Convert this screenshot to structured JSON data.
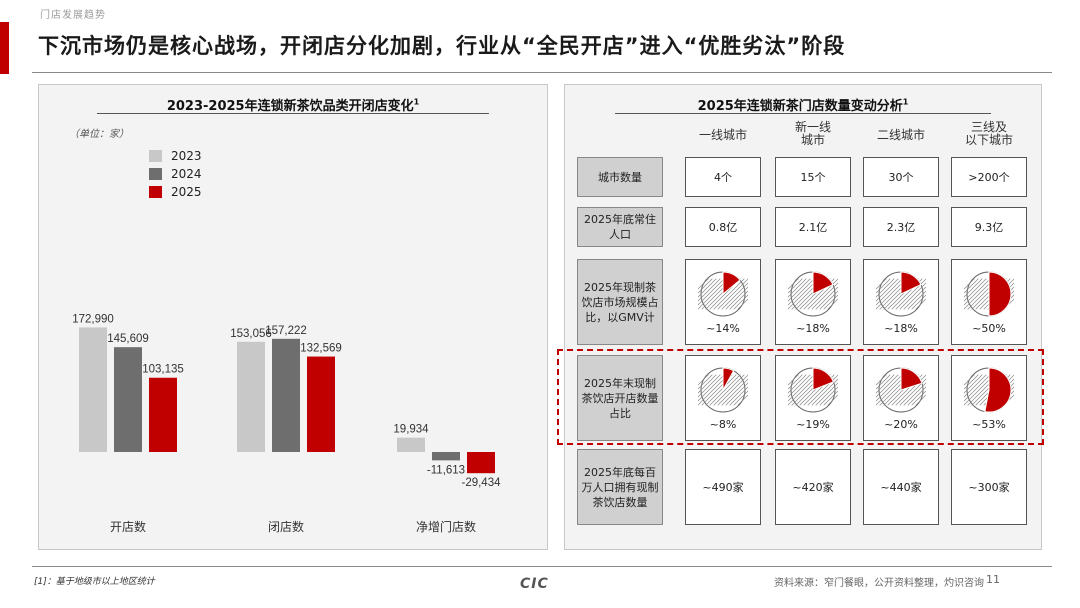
{
  "header": {
    "breadcrumb": "门店发展趋势",
    "title": "下沉市场仍是核心战场，开闭店分化加剧，行业从“全民开店”进入“优胜劣汰”阶段"
  },
  "left_panel": {
    "title": "2023-2025年连锁新茶饮品类开闭店变化",
    "title_sup": "1",
    "unit": "（单位：家）"
  },
  "chart_data": {
    "type": "bar",
    "categories": [
      "开店数",
      "闭店数",
      "净增门店数"
    ],
    "series": [
      {
        "name": "2023",
        "values": [
          172990,
          153056,
          19934
        ],
        "color": "#c8c8c8"
      },
      {
        "name": "2024",
        "values": [
          145609,
          157222,
          -11613
        ],
        "color": "#6e6e6e"
      },
      {
        "name": "2025",
        "values": [
          103135,
          132569,
          -29434
        ],
        "color": "#c00000"
      }
    ],
    "data_labels": [
      [
        "172,990",
        "145,609",
        "103,135"
      ],
      [
        "153,056",
        "157,222",
        "132,569"
      ],
      [
        "19,934",
        "-11,613",
        "-29,434"
      ]
    ],
    "legend_position": "top-left",
    "grid": false
  },
  "right_panel": {
    "title": "2025年连锁新茶门店数量变动分析",
    "title_sup": "1",
    "columns": [
      "一线城市",
      "新一线城市",
      "二线城市",
      "三线及以下城市"
    ],
    "rows": [
      {
        "label": "城市数量",
        "values": [
          "4个",
          "15个",
          "30个",
          ">200个"
        ]
      },
      {
        "label": "2025年底常住人口",
        "values": [
          "0.8亿",
          "2.1亿",
          "2.3亿",
          "9.3亿"
        ]
      },
      {
        "label": "2025年现制茶饮店市场规模占比，以GMV计",
        "pies": [
          14,
          18,
          18,
          50
        ],
        "values": [
          "~14%",
          "~18%",
          "~18%",
          "~50%"
        ]
      },
      {
        "label": "2025年末现制茶饮店开店数量占比",
        "pies": [
          8,
          19,
          20,
          53
        ],
        "values": [
          "~8%",
          "~19%",
          "~20%",
          "~53%"
        ]
      },
      {
        "label": "2025年底每百万人口拥有现制茶饮店数量",
        "values": [
          "~490家",
          "~420家",
          "~440家",
          "~300家"
        ]
      }
    ],
    "accent_color": "#c00000"
  },
  "footer": {
    "footnote": "[1]：基于地级市以上地区统计",
    "source": "资料来源：窄门餐眼，公开资料整理，灼识咨询",
    "page": "11",
    "logo": "CIC"
  }
}
